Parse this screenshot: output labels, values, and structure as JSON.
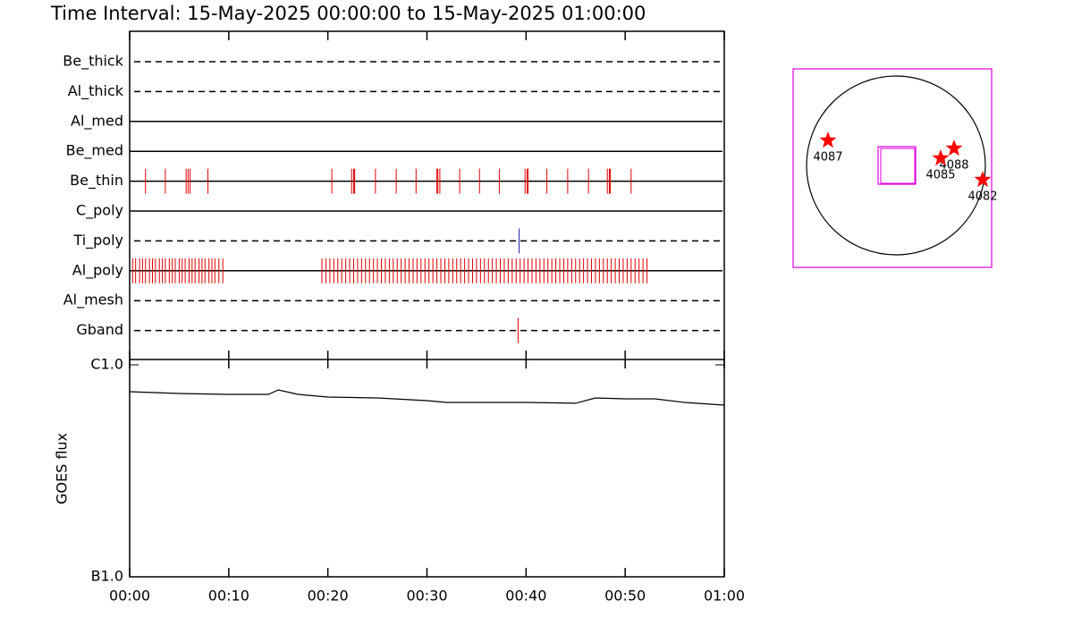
{
  "chart_data": [
    {
      "type": "timeline",
      "title": "Time Interval: 15-May-2025 00:00:00 to 15-May-2025 01:00:00",
      "categories": [
        "Be_thick",
        "Al_thick",
        "Al_med",
        "Be_med",
        "Be_thin",
        "C_poly",
        "Ti_poly",
        "Al_poly",
        "Al_mesh",
        "Gband"
      ],
      "line_styles": [
        "dashed",
        "dashed",
        "solid",
        "solid",
        "solid",
        "solid",
        "dashed",
        "solid",
        "dashed",
        "dashed"
      ],
      "event_colors": [
        "#e00000",
        "#e00000",
        "#e00000",
        "#e00000",
        "#e00000",
        "#e00000",
        "#2020a0",
        "#e00000",
        "#e00000",
        "#e00000"
      ],
      "events": [
        [],
        [],
        [],
        [],
        [
          1.6,
          3.6,
          5.7,
          5.9,
          6.1,
          7.9,
          20.4,
          22.4,
          22.6,
          22.7,
          24.8,
          26.9,
          28.9,
          31.0,
          31.1,
          31.3,
          33.3,
          35.3,
          37.3,
          39.9,
          40.1,
          40.2,
          42.1,
          44.2,
          46.3,
          48.2,
          48.4,
          48.5,
          50.6
        ],
        [],
        [
          39.3
        ],
        [
          0.3,
          0.6,
          1.0,
          1.3,
          1.6,
          2.0,
          2.3,
          2.6,
          3.0,
          3.3,
          3.6,
          4.0,
          4.3,
          4.6,
          5.0,
          5.3,
          5.6,
          6.0,
          6.3,
          6.6,
          7.0,
          7.3,
          7.6,
          8.0,
          8.3,
          8.6,
          9.0,
          9.4,
          19.4,
          19.8,
          20.2,
          20.6,
          21.0,
          21.4,
          21.8,
          22.2,
          22.6,
          23.0,
          23.4,
          23.8,
          24.2,
          24.6,
          25.0,
          25.4,
          25.8,
          26.2,
          26.6,
          27.0,
          27.4,
          27.8,
          28.2,
          28.6,
          29.0,
          29.4,
          29.8,
          30.2,
          30.6,
          31.0,
          31.4,
          31.8,
          32.2,
          32.6,
          33.0,
          33.4,
          33.8,
          34.2,
          34.6,
          35.0,
          35.4,
          35.8,
          36.2,
          36.6,
          37.0,
          37.4,
          37.8,
          38.2,
          38.6,
          39.0,
          39.4,
          39.8,
          40.2,
          40.6,
          41.0,
          41.4,
          41.8,
          42.2,
          42.6,
          43.0,
          43.4,
          43.8,
          44.2,
          44.6,
          45.0,
          45.4,
          45.8,
          46.2,
          46.6,
          47.0,
          47.4,
          47.8,
          48.2,
          48.6,
          49.0,
          49.4,
          49.8,
          50.2,
          50.6,
          51.0,
          51.4,
          51.8,
          52.2
        ],
        [],
        [
          39.2
        ]
      ],
      "xlim": [
        0,
        60
      ]
    },
    {
      "type": "line",
      "y_label": "GOES flux",
      "x": [
        0,
        5,
        10,
        14,
        15,
        17,
        20,
        25,
        30,
        32,
        40,
        45,
        47,
        50,
        53,
        56,
        60
      ],
      "values": [
        7.47e-07,
        7.33e-07,
        7.26e-07,
        7.26e-07,
        7.62e-07,
        7.26e-07,
        7.05e-07,
        6.98e-07,
        6.78e-07,
        6.65e-07,
        6.65e-07,
        6.59e-07,
        6.98e-07,
        6.91e-07,
        6.91e-07,
        6.65e-07,
        6.46e-07
      ],
      "color": "#000000",
      "log_y": true,
      "ylim": [
        1e-07,
        1e-06
      ],
      "yticks": [
        {
          "value": 1e-07,
          "label": "B1.0"
        },
        {
          "value": 1e-06,
          "label": "C1.0"
        }
      ],
      "xlim": [
        0,
        60
      ],
      "xticks": [
        {
          "value": 0,
          "label": "00:00"
        },
        {
          "value": 10,
          "label": "00:10"
        },
        {
          "value": 20,
          "label": "00:20"
        },
        {
          "value": 30,
          "label": "00:30"
        },
        {
          "value": 40,
          "label": "00:40"
        },
        {
          "value": 50,
          "label": "00:50"
        },
        {
          "value": 60,
          "label": "01:00"
        }
      ]
    },
    {
      "type": "map",
      "labels": [
        "4087",
        "4088",
        "4085",
        "4082"
      ],
      "star_color": "#ff0000",
      "frame_color": "#e000e0"
    }
  ]
}
